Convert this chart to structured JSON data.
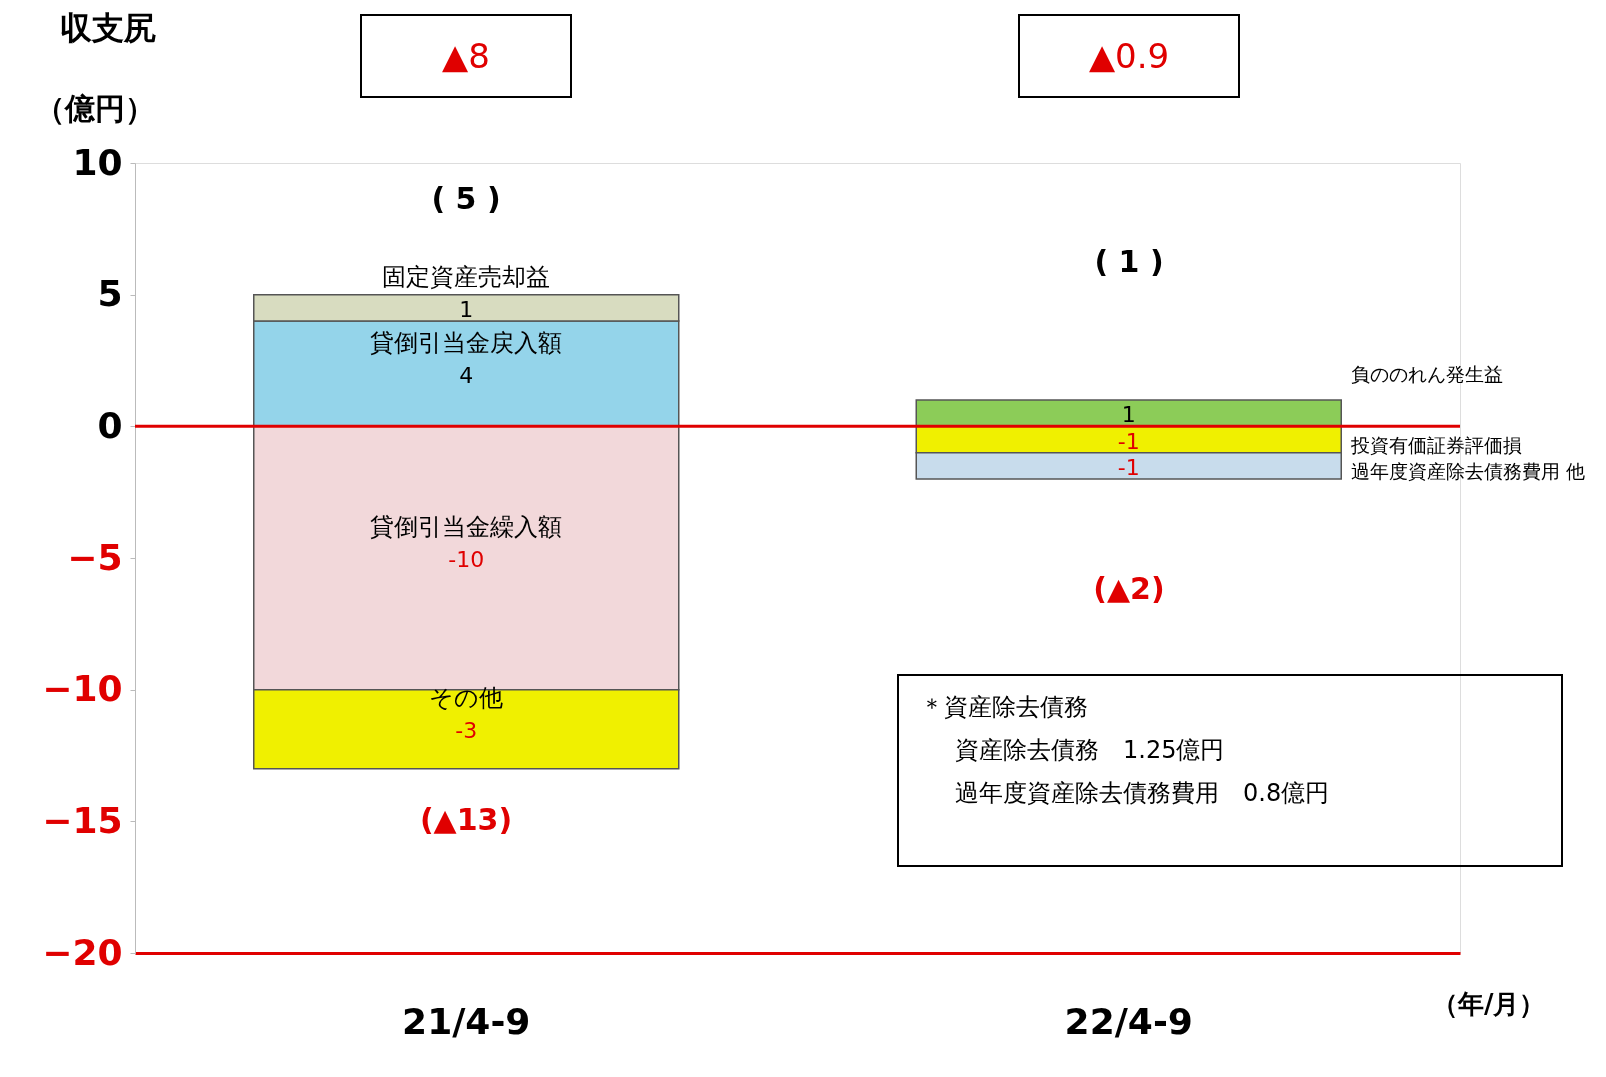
{
  "chart_data": {
    "type": "bar",
    "stacked": true,
    "categories": [
      "21/4-9",
      "22/4-9"
    ],
    "ylabel": "収支尻",
    "xlabel": "（年/月）",
    "ylim": [
      -20,
      10
    ],
    "yticks": [
      -20,
      -15,
      -10,
      -5,
      0,
      5,
      10
    ],
    "grid": false,
    "legend": false,
    "data_labels": true,
    "series": [
      {
        "name": "貸倒引当金戻入額",
        "color": "#94d4ea",
        "values": [
          4,
          null
        ]
      },
      {
        "name": "固定資産売却益",
        "color": "#d8dcc0",
        "values": [
          1,
          null
        ]
      },
      {
        "name": "負ののれん発生益",
        "color": "#8ccc58",
        "values": [
          null,
          1
        ]
      },
      {
        "name": "貸倒引当金繰入額",
        "color": "#f2d8da",
        "values": [
          -10,
          null
        ]
      },
      {
        "name": "その他",
        "color": "#f0f000",
        "values": [
          -3,
          null
        ]
      },
      {
        "name": "投資有価証券評価損",
        "color": "#f0f000",
        "values": [
          null,
          -1
        ]
      },
      {
        "name": "過年度資産除去債務費用 他",
        "color": "#c8dcec",
        "values": [
          null,
          -1
        ]
      }
    ],
    "ref_lines": [
      {
        "axis": "y",
        "value": 0,
        "color": "#e00000"
      }
    ],
    "annotations": [
      "▲8",
      "▲0.9",
      "( 5 )",
      "(▲13)",
      "( 1 )",
      "(▲2)",
      "＊資産除去債務",
      "資産除去債務　1.25億円",
      "過年度資産除去債務費用　0.8億円",
      "（億円）"
    ]
  }
}
